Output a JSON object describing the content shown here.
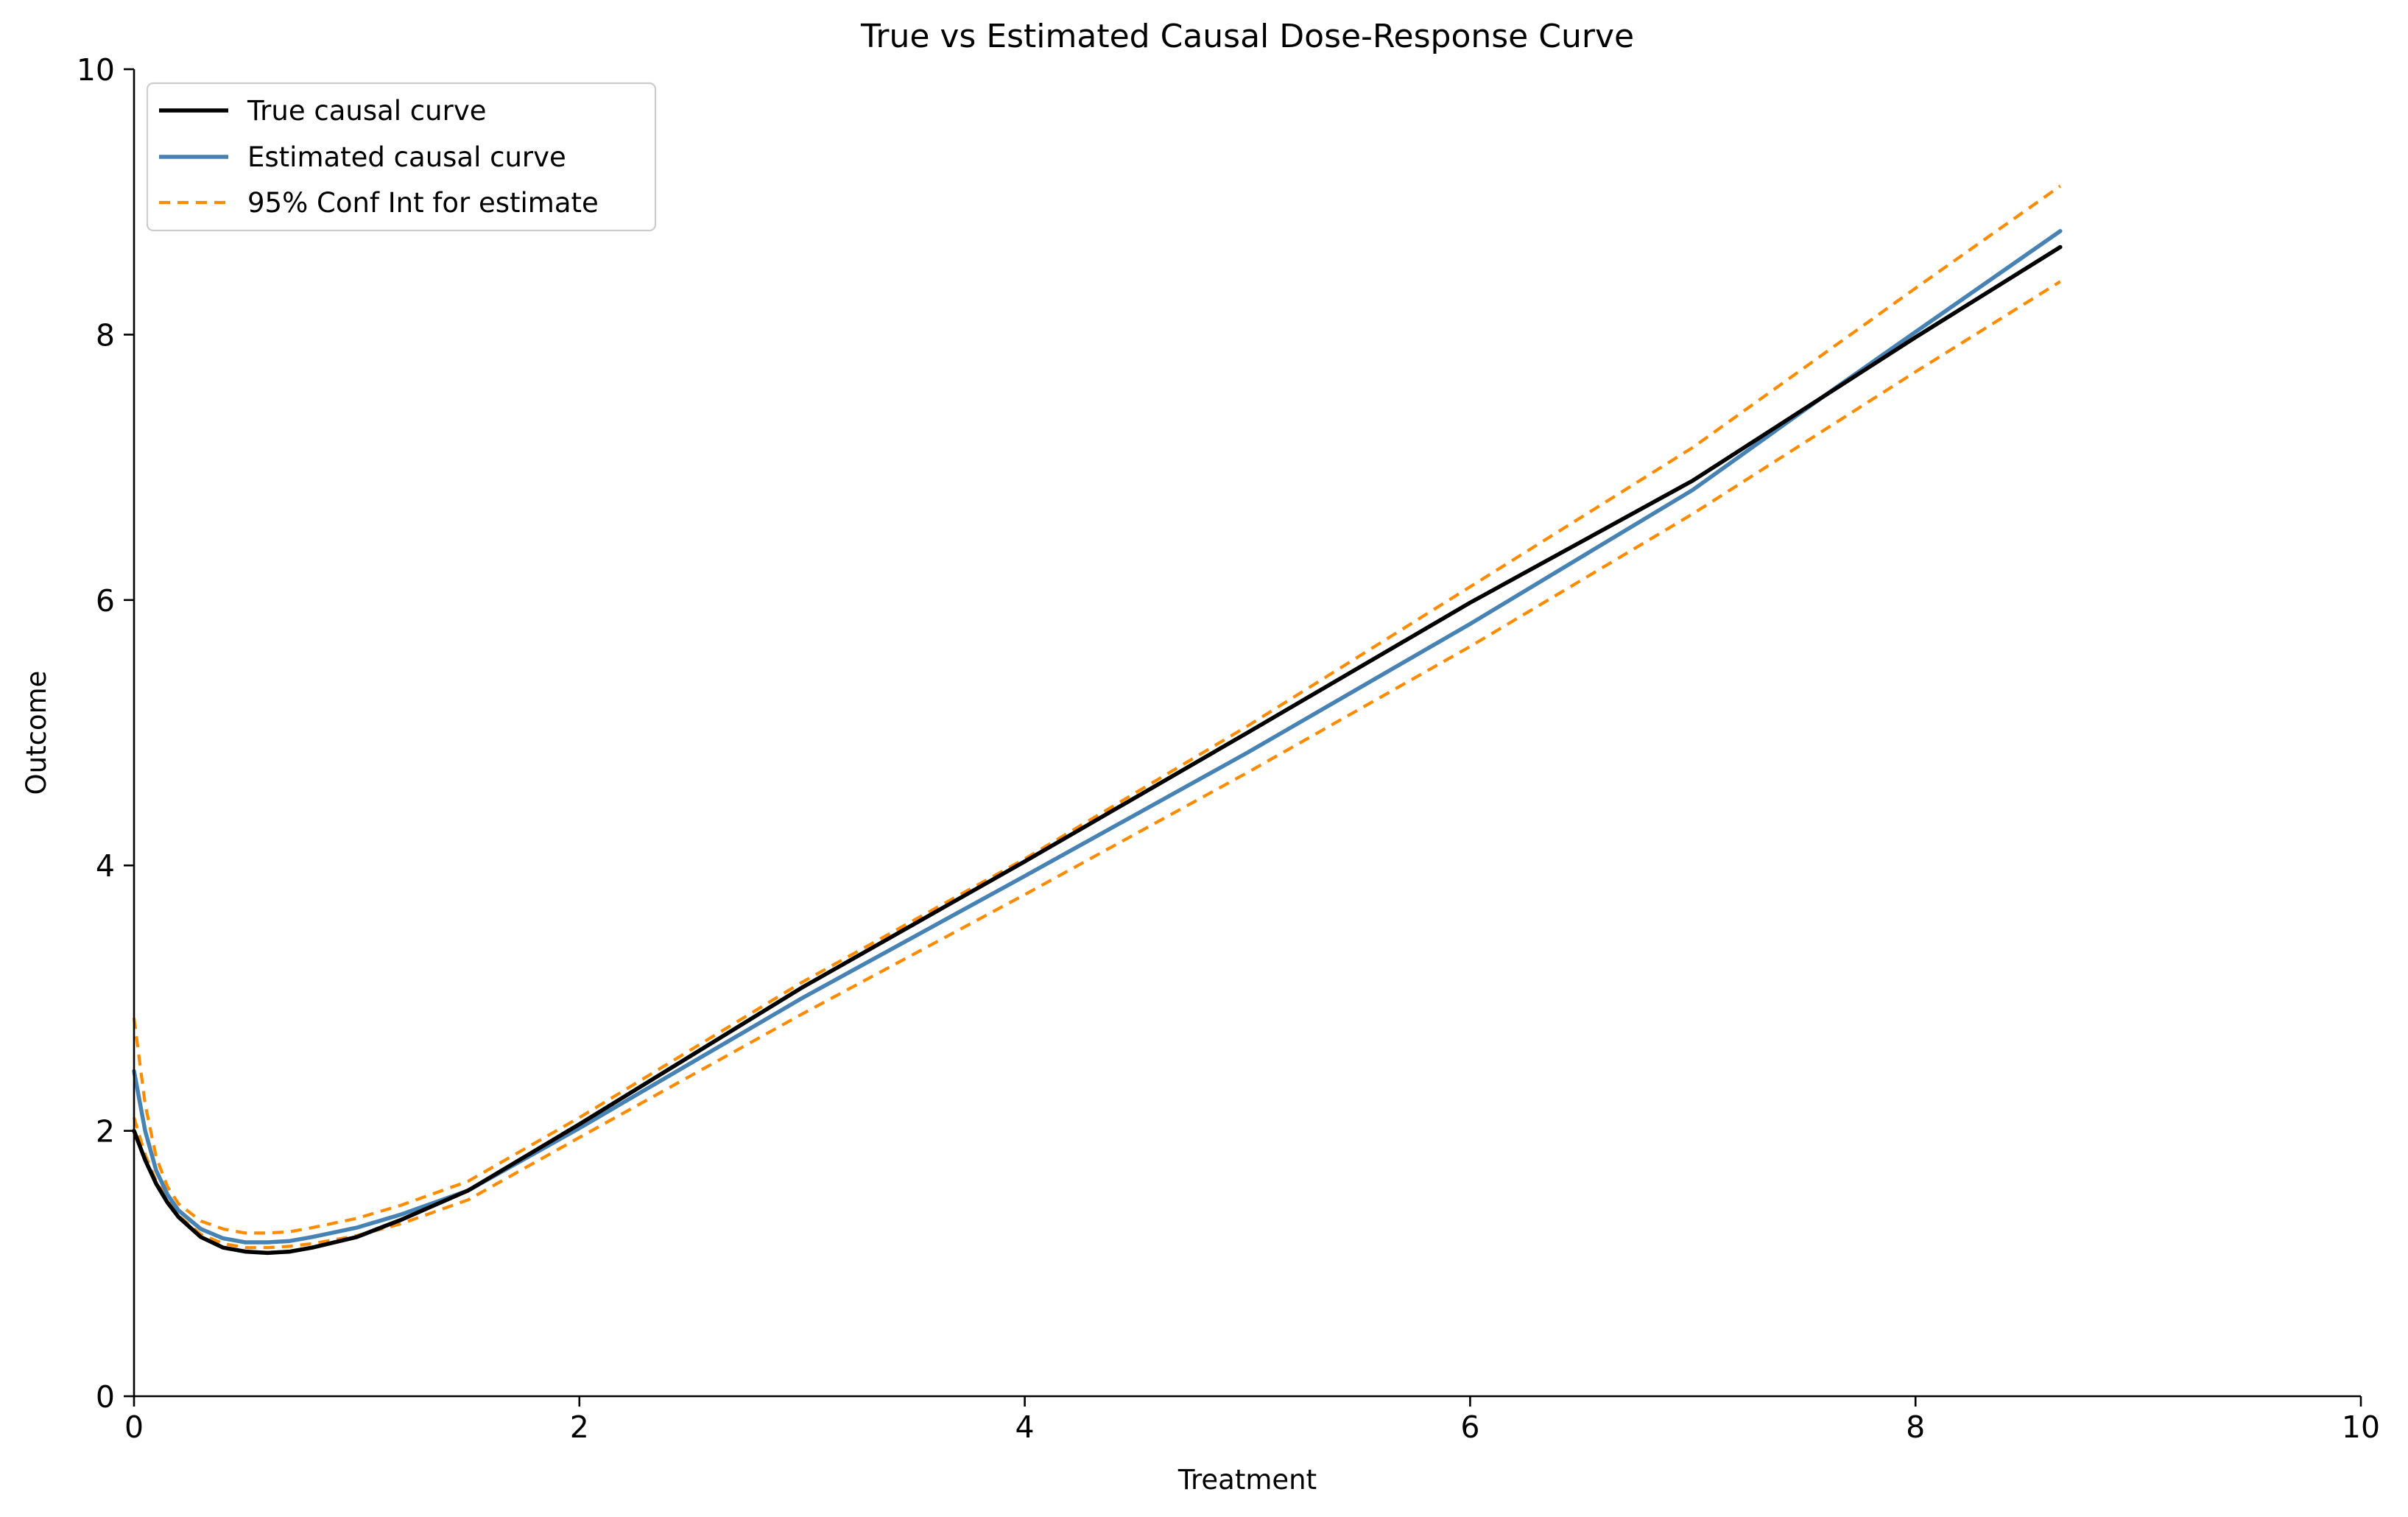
{
  "chart_data": {
    "type": "line",
    "title": "True vs Estimated Causal Dose-Response Curve",
    "xlabel": "Treatment",
    "ylabel": "Outcome",
    "xlim": [
      0,
      10
    ],
    "ylim": [
      0,
      10
    ],
    "xticks": [
      "0",
      "2",
      "4",
      "6",
      "8",
      "10"
    ],
    "yticks": [
      "0",
      "2",
      "4",
      "6",
      "8",
      "10"
    ],
    "grid": false,
    "legend_position": "top-left",
    "series": [
      {
        "name": "True causal curve",
        "color": "#000000",
        "style": "solid",
        "points": [
          [
            0,
            2.0
          ],
          [
            0.05,
            1.78
          ],
          [
            0.1,
            1.6
          ],
          [
            0.15,
            1.46
          ],
          [
            0.2,
            1.35
          ],
          [
            0.3,
            1.2
          ],
          [
            0.4,
            1.12
          ],
          [
            0.5,
            1.09
          ],
          [
            0.6,
            1.08
          ],
          [
            0.7,
            1.09
          ],
          [
            0.8,
            1.12
          ],
          [
            1.0,
            1.2
          ],
          [
            1.2,
            1.33
          ],
          [
            1.5,
            1.55
          ],
          [
            2.0,
            2.05
          ],
          [
            3.0,
            3.08
          ],
          [
            4.0,
            4.03
          ],
          [
            5.0,
            5.0
          ],
          [
            6.0,
            5.98
          ],
          [
            7.0,
            6.9
          ],
          [
            8.0,
            7.98
          ],
          [
            8.65,
            8.66
          ]
        ]
      },
      {
        "name": "Estimated causal curve",
        "color": "#4682b4",
        "style": "solid",
        "points": [
          [
            0,
            2.45
          ],
          [
            0.05,
            2.0
          ],
          [
            0.1,
            1.7
          ],
          [
            0.15,
            1.52
          ],
          [
            0.2,
            1.4
          ],
          [
            0.3,
            1.26
          ],
          [
            0.4,
            1.19
          ],
          [
            0.5,
            1.16
          ],
          [
            0.6,
            1.16
          ],
          [
            0.7,
            1.17
          ],
          [
            0.8,
            1.2
          ],
          [
            1.0,
            1.27
          ],
          [
            1.2,
            1.37
          ],
          [
            1.5,
            1.55
          ],
          [
            2.0,
            2.02
          ],
          [
            3.0,
            3.0
          ],
          [
            4.0,
            3.92
          ],
          [
            5.0,
            4.85
          ],
          [
            6.0,
            5.82
          ],
          [
            7.0,
            6.83
          ],
          [
            7.6,
            7.55
          ],
          [
            8.0,
            8.02
          ],
          [
            8.65,
            8.78
          ]
        ]
      },
      {
        "name": "95% Conf Int for estimate",
        "color": "#ff8c00",
        "style": "dashed",
        "points": [
          [
            0,
            2.85
          ],
          [
            0.05,
            2.2
          ],
          [
            0.1,
            1.8
          ],
          [
            0.15,
            1.58
          ],
          [
            0.2,
            1.45
          ],
          [
            0.3,
            1.32
          ],
          [
            0.4,
            1.26
          ],
          [
            0.5,
            1.23
          ],
          [
            0.6,
            1.23
          ],
          [
            0.7,
            1.24
          ],
          [
            0.8,
            1.27
          ],
          [
            1.0,
            1.34
          ],
          [
            1.2,
            1.44
          ],
          [
            1.5,
            1.62
          ],
          [
            2.0,
            2.1
          ],
          [
            3.0,
            3.12
          ],
          [
            4.0,
            4.05
          ],
          [
            5.0,
            5.05
          ],
          [
            6.0,
            6.1
          ],
          [
            7.0,
            7.15
          ],
          [
            8.0,
            8.35
          ],
          [
            8.65,
            9.12
          ]
        ]
      },
      {
        "name": "",
        "color": "#ff8c00",
        "style": "dashed",
        "points": [
          [
            0,
            2.1
          ],
          [
            0.05,
            1.82
          ],
          [
            0.1,
            1.62
          ],
          [
            0.15,
            1.48
          ],
          [
            0.2,
            1.36
          ],
          [
            0.3,
            1.22
          ],
          [
            0.4,
            1.15
          ],
          [
            0.5,
            1.12
          ],
          [
            0.6,
            1.12
          ],
          [
            0.7,
            1.13
          ],
          [
            0.8,
            1.15
          ],
          [
            1.0,
            1.21
          ],
          [
            1.2,
            1.3
          ],
          [
            1.5,
            1.48
          ],
          [
            2.0,
            1.95
          ],
          [
            3.0,
            2.88
          ],
          [
            4.0,
            3.78
          ],
          [
            5.0,
            4.7
          ],
          [
            6.0,
            5.65
          ],
          [
            7.0,
            6.65
          ],
          [
            8.0,
            7.72
          ],
          [
            8.65,
            8.4
          ]
        ]
      }
    ]
  }
}
